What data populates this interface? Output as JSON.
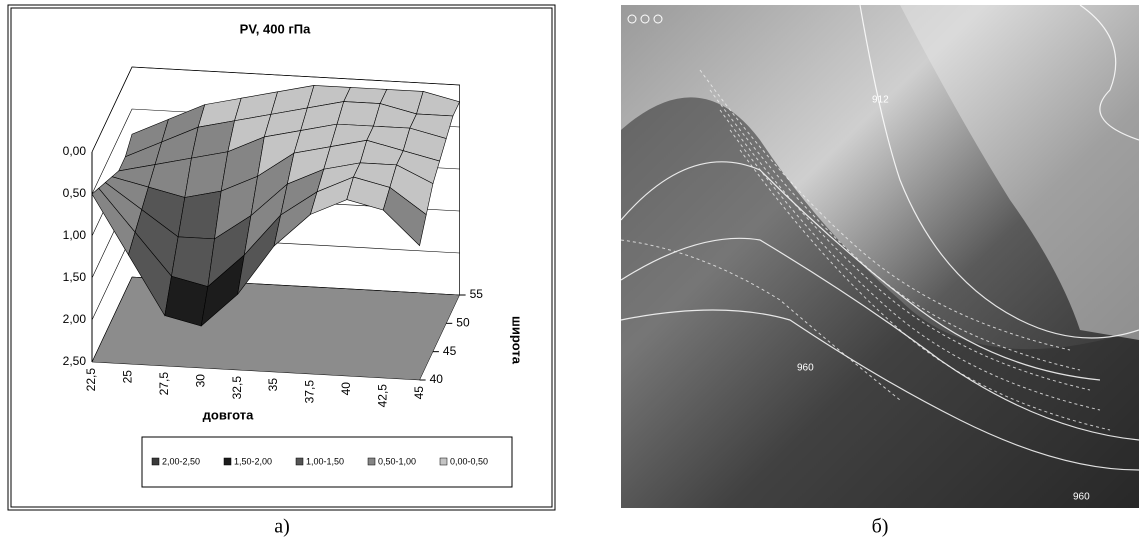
{
  "chart_data": {
    "type": "surface",
    "title": "PV,  400 гПа",
    "x_label": "довгота",
    "y_label": "широта",
    "categories": [
      "22,5",
      "25",
      "27,5",
      "30",
      "32,5",
      "35",
      "37,5",
      "40",
      "42,5",
      "45"
    ],
    "depth_categories": [
      40,
      null,
      45,
      null,
      50,
      null,
      55
    ],
    "zlim": [
      0,
      2.5
    ],
    "z_reversed": true,
    "zticks": [
      {
        "value": 0,
        "label": "0,00"
      },
      {
        "value": 0.5,
        "label": "0,50"
      },
      {
        "value": 1,
        "label": "1,00"
      },
      {
        "value": 1.5,
        "label": "1,50"
      },
      {
        "value": 2,
        "label": "2,00"
      },
      {
        "value": 2.5,
        "label": "2,50"
      }
    ],
    "series": [
      {
        "name": "2,00-2,50",
        "color": "#3a3a3a"
      },
      {
        "name": "1,50-2,00",
        "color": "#1c1c1c"
      },
      {
        "name": "1,00-1,50",
        "color": "#555555"
      },
      {
        "name": "0,50-1,00",
        "color": "#858585"
      },
      {
        "name": "0,00-0,50",
        "color": "#c4c4c4"
      }
    ],
    "values": [
      [
        0.5,
        1.2,
        1.9,
        2.0,
        1.6,
        1.0,
        0.6,
        0.4,
        0.5,
        0.9
      ],
      [
        0.6,
        1.1,
        1.6,
        1.7,
        1.3,
        0.8,
        0.5,
        0.3,
        0.4,
        0.7
      ],
      [
        0.7,
        1.0,
        1.3,
        1.3,
        1.0,
        0.6,
        0.4,
        0.3,
        0.3,
        0.5
      ],
      [
        0.8,
        0.9,
        1.0,
        0.9,
        0.7,
        0.4,
        0.3,
        0.2,
        0.3,
        0.4
      ],
      [
        0.9,
        0.8,
        0.7,
        0.6,
        0.4,
        0.3,
        0.2,
        0.2,
        0.2,
        0.3
      ],
      [
        0.9,
        0.7,
        0.5,
        0.4,
        0.3,
        0.2,
        0.1,
        0.1,
        0.2,
        0.2
      ],
      [
        0.8,
        0.6,
        0.4,
        0.3,
        0.2,
        0.1,
        0.1,
        0.1,
        0.1,
        0.2
      ]
    ]
  },
  "captions": [
    "а)",
    "б)"
  ],
  "map_labels": [
    "912",
    "960",
    "960"
  ]
}
